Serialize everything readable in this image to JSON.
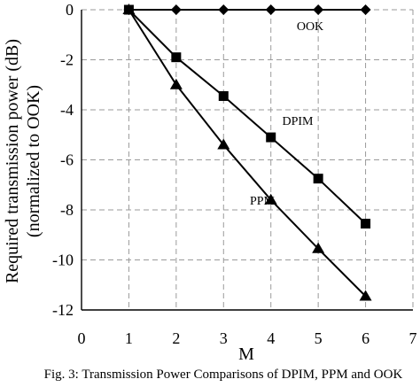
{
  "chart_data": {
    "type": "line",
    "title": "",
    "xlabel": "M",
    "ylabel_line1": "Required transmission power (dB)",
    "ylabel_line2": "(normalized to OOK)",
    "xlim": [
      0,
      7
    ],
    "ylim": [
      -12,
      0
    ],
    "xticks": [
      0,
      1,
      2,
      3,
      4,
      5,
      6,
      7
    ],
    "yticks": [
      0,
      -2,
      -4,
      -6,
      -8,
      -10,
      -12
    ],
    "grid": true,
    "series": [
      {
        "name": "OOK",
        "marker": "diamond",
        "x": [
          1,
          2,
          3,
          4,
          5,
          6
        ],
        "y": [
          0,
          0,
          0,
          0,
          0,
          0
        ]
      },
      {
        "name": "DPIM",
        "marker": "square",
        "x": [
          1,
          2,
          3,
          4,
          5,
          6
        ],
        "y": [
          0,
          -1.9,
          -3.45,
          -5.1,
          -6.75,
          -8.55
        ]
      },
      {
        "name": "PPM",
        "marker": "triangle",
        "x": [
          1,
          2,
          3,
          4,
          5,
          6
        ],
        "y": [
          0,
          -3.0,
          -5.4,
          -7.6,
          -9.55,
          -11.45
        ]
      }
    ]
  },
  "caption": "Fig. 3: Transmission Power Comparisons of DPIM, PPM and OOK"
}
